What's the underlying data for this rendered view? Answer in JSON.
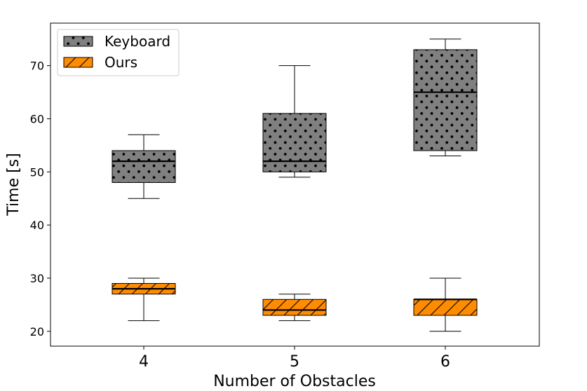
{
  "chart_data": {
    "type": "box",
    "title": "",
    "xlabel": "Number of Obstacles",
    "ylabel": "Time [s]",
    "categories": [
      "4",
      "5",
      "6"
    ],
    "ylim": [
      17.2,
      78
    ],
    "yticks": [
      20,
      30,
      40,
      50,
      60,
      70
    ],
    "grid": false,
    "legend_position": "top-left",
    "series": [
      {
        "name": "Keyboard",
        "color": "#808080",
        "hatch": "dots",
        "boxes": [
          {
            "category": "4",
            "min": 45,
            "q1": 48,
            "median": 52,
            "q3": 54,
            "max": 57
          },
          {
            "category": "5",
            "min": 49,
            "q1": 50,
            "median": 52,
            "q3": 61,
            "max": 70
          },
          {
            "category": "6",
            "min": 53,
            "q1": 54,
            "median": 65,
            "q3": 73,
            "max": 75
          }
        ]
      },
      {
        "name": "Ours",
        "color": "#ff8c00",
        "hatch": "diagonal",
        "boxes": [
          {
            "category": "4",
            "min": 22,
            "q1": 27,
            "median": 28,
            "q3": 29,
            "max": 30
          },
          {
            "category": "5",
            "min": 22,
            "q1": 23,
            "median": 24,
            "q3": 26,
            "max": 27
          },
          {
            "category": "6",
            "min": 20,
            "q1": 23,
            "median": 26,
            "q3": 26,
            "max": 30
          }
        ]
      }
    ]
  }
}
